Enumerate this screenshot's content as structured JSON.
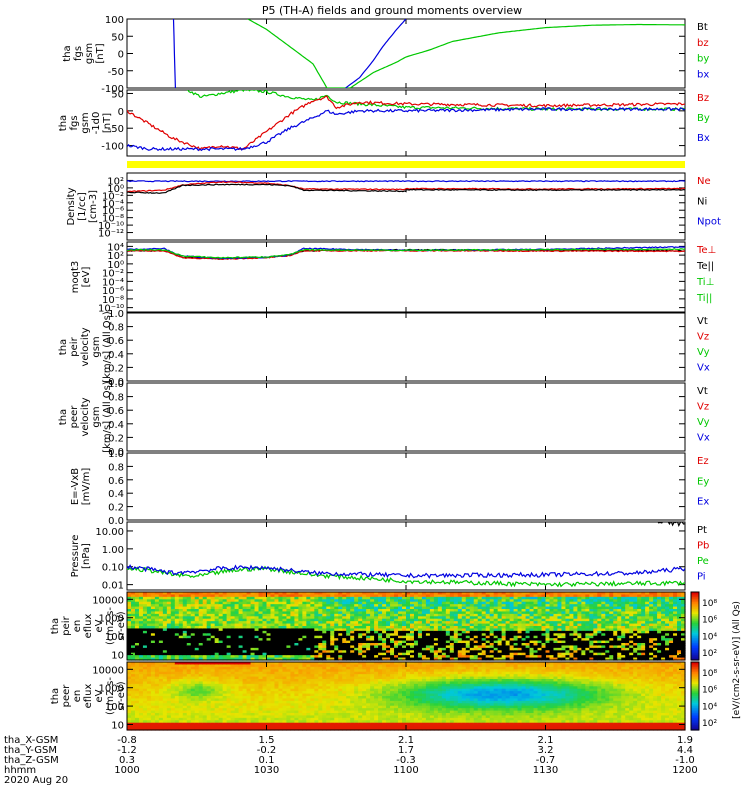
{
  "title": "P5 (TH-A) fields and ground moments overview",
  "date": "2020 Aug 20",
  "colors": {
    "black": "#000000",
    "red": "#e00000",
    "green": "#00c800",
    "blue": "#0000e0",
    "yellow": "#ffff00"
  },
  "ephemeris": {
    "rows": [
      {
        "label": "tha_X-GSM",
        "values": [
          "-0.8",
          "1.5",
          "2.1",
          "2.1",
          "1.9"
        ]
      },
      {
        "label": "tha_Y-GSM",
        "values": [
          "-1.2",
          "-0.2",
          "1.7",
          "3.2",
          "4.4"
        ]
      },
      {
        "label": "tha_Z-GSM",
        "values": [
          "0.3",
          "0.1",
          "-0.3",
          "-0.7",
          "-1.0"
        ]
      },
      {
        "label": "hhmm",
        "values": [
          "1000",
          "1030",
          "1100",
          "1130",
          "1200"
        ]
      }
    ]
  },
  "colorbar": {
    "label": "[eV/(cm2-s-sr-eV)] (All Qs)",
    "label_lower": "[eV/(cm2-s-sr-eV)]",
    "ticks_upper": [
      "10⁸",
      "10⁶",
      "10⁴",
      "10²"
    ],
    "ticks_lower": [
      "10⁸",
      "10⁶",
      "10⁴",
      "10²"
    ]
  },
  "chart_data": [
    {
      "type": "line",
      "id": "fgs",
      "ylabel": [
        "tha",
        "fgs",
        "gsm",
        "[nT]"
      ],
      "ylim": [
        -100,
        100
      ],
      "yticks": [
        "100",
        "50",
        "0",
        "-50",
        "-100"
      ],
      "legend": [
        {
          "name": "Bt",
          "color": "#000000"
        },
        {
          "name": "bz",
          "color": "#e00000"
        },
        {
          "name": "by",
          "color": "#00c800"
        },
        {
          "name": "bx",
          "color": "#0000e0"
        }
      ],
      "series": [
        {
          "name": "by",
          "color": "#00c800",
          "x": [
            1026,
            1030,
            1035,
            1040,
            1043,
            1048,
            1053,
            1058,
            1100,
            1105,
            1110,
            1120,
            1130,
            1140,
            1150,
            1200
          ],
          "y": [
            100,
            70,
            20,
            -30,
            -100,
            -100,
            -55,
            -25,
            -10,
            10,
            35,
            60,
            75,
            82,
            84,
            83
          ]
        },
        {
          "name": "bx",
          "color": "#0000e0",
          "x": [
            1010,
            1010.2,
            1010.4
          ],
          "y": [
            100,
            0,
            -100
          ]
        },
        {
          "name": "bx",
          "color": "#0000e0",
          "x": [
            1047,
            1050,
            1053,
            1055,
            1058,
            1100
          ],
          "y": [
            -100,
            -70,
            -20,
            20,
            70,
            100
          ]
        }
      ]
    },
    {
      "type": "line",
      "id": "fgs_smoothed",
      "ylabel": [
        "tha",
        "fgs",
        "gsm",
        "-1d0",
        "[nT]"
      ],
      "ylim": [
        -130,
        60
      ],
      "yticks": [
        "50",
        "0",
        "-50",
        "-100"
      ],
      "legend": [
        {
          "name": "Bz",
          "color": "#e00000"
        },
        {
          "name": "By",
          "color": "#00c800"
        },
        {
          "name": "Bx",
          "color": "#0000e0"
        }
      ],
      "series": [
        {
          "name": "By",
          "color": "#00c800",
          "x": [
            1013,
            1016,
            1020,
            1025,
            1030,
            1035,
            1040,
            1043,
            1045,
            1050,
            1100,
            1130,
            1200
          ],
          "y": [
            60,
            40,
            50,
            60,
            55,
            40,
            30,
            45,
            25,
            20,
            10,
            5,
            5
          ]
        },
        {
          "name": "Bz",
          "color": "#e00000",
          "x": [
            1000,
            1005,
            1010,
            1016,
            1020,
            1025,
            1030,
            1035,
            1040,
            1043,
            1045,
            1050,
            1100,
            1130,
            1200
          ],
          "y": [
            0,
            -40,
            -80,
            -110,
            -100,
            -110,
            -60,
            -10,
            30,
            40,
            10,
            25,
            20,
            15,
            20
          ]
        },
        {
          "name": "Bx",
          "color": "#0000e0",
          "x": [
            1000,
            1005,
            1010,
            1016,
            1020,
            1025,
            1030,
            1035,
            1040,
            1043,
            1045,
            1050,
            1100,
            1130,
            1200
          ],
          "y": [
            -100,
            -110,
            -110,
            -110,
            -110,
            -110,
            -90,
            -50,
            -20,
            0,
            -10,
            0,
            0,
            5,
            5
          ]
        }
      ]
    },
    {
      "type": "line",
      "id": "density",
      "log": true,
      "ylabel": [
        "Density",
        "[1/cc]",
        "[cm-3]"
      ],
      "ylim": [
        -14,
        4
      ],
      "yticks": [
        "10²",
        "10⁰",
        "10⁻²",
        "10⁻⁴",
        "10⁻⁶",
        "10⁻⁸",
        "10⁻¹⁰",
        "10⁻¹²"
      ],
      "ytick_values": [
        2,
        0,
        -2,
        -4,
        -6,
        -8,
        -10,
        -12
      ],
      "legend": [
        {
          "name": "Ne",
          "color": "#e00000"
        },
        {
          "name": "Ni",
          "color": "#000000"
        },
        {
          "name": "Npot",
          "color": "#0000e0"
        }
      ],
      "series": [
        {
          "name": "Npot",
          "color": "#0000e0",
          "x": [
            1000,
            1200
          ],
          "y": [
            1.8,
            1.8
          ]
        },
        {
          "name": "Ne",
          "color": "#e00000",
          "x": [
            1000,
            1008,
            1012,
            1020,
            1030,
            1035,
            1038,
            1060,
            1100,
            1130,
            1200
          ],
          "y": [
            -1,
            -0.6,
            0.8,
            1.6,
            1.3,
            0.6,
            -0.3,
            -0.4,
            -0.2,
            -0.3,
            -0.2
          ]
        },
        {
          "name": "Ni",
          "color": "#000000",
          "x": [
            1000,
            1008,
            1012,
            1020,
            1030,
            1035,
            1038,
            1060,
            1100,
            1130,
            1200
          ],
          "y": [
            -1.2,
            -1.4,
            0.7,
            0.9,
            0.9,
            0.6,
            -0.6,
            -0.9,
            -0.5,
            -0.6,
            -0.5
          ]
        }
      ]
    },
    {
      "type": "line",
      "id": "temperature",
      "log": true,
      "ylabel": [
        "moqt3",
        "[eV]"
      ],
      "ylim": [
        -11,
        5
      ],
      "yticks": [
        "10⁴",
        "10²",
        "10⁰",
        "10⁻²",
        "10⁻⁴",
        "10⁻⁶",
        "10⁻⁸",
        "10⁻¹⁰"
      ],
      "ytick_values": [
        4,
        2,
        0,
        -2,
        -4,
        -6,
        -8,
        -10
      ],
      "legend": [
        {
          "name": "Te⊥",
          "color": "#e00000"
        },
        {
          "name": "Te||",
          "color": "#000000"
        },
        {
          "name": "Ti⊥",
          "color": "#00c800"
        },
        {
          "name": "Ti||",
          "color": "#00c800"
        }
      ],
      "series": [
        {
          "name": "Te||",
          "color": "#000000",
          "x": [
            1000,
            1008,
            1012,
            1020,
            1030,
            1035,
            1038,
            1100,
            1200
          ],
          "y": [
            3,
            3,
            1.5,
            1.2,
            1.5,
            2,
            3,
            3.2,
            3
          ]
        },
        {
          "name": "Te⊥",
          "color": "#e00000",
          "x": [
            1000,
            1008,
            1012,
            1020,
            1030,
            1035,
            1038,
            1100,
            1200
          ],
          "y": [
            3,
            3,
            1.4,
            1.1,
            1.4,
            1.9,
            3,
            3,
            2.9
          ]
        },
        {
          "name": "Ti⊥",
          "color": "#0000e0",
          "x": [
            1000,
            1008,
            1010,
            1012,
            1020,
            1030,
            1035,
            1038,
            1100,
            1130,
            1200
          ],
          "y": [
            3.3,
            3.5,
            2.5,
            1.8,
            1.3,
            1.5,
            2,
            3.5,
            3.1,
            3.3,
            3.9
          ]
        },
        {
          "name": "Ti||",
          "color": "#00c800",
          "x": [
            1000,
            1008,
            1012,
            1020,
            1030,
            1035,
            1038,
            1100,
            1200
          ],
          "y": [
            3.2,
            3.2,
            1.8,
            1.4,
            1.6,
            2.1,
            3.2,
            3.1,
            3.4
          ]
        }
      ]
    },
    {
      "type": "line",
      "id": "peir_velocity",
      "ylabel": [
        "tha",
        "peir",
        "velocity",
        "gsm",
        "[km/s] (All Qs)"
      ],
      "ylim": [
        0,
        1
      ],
      "yticks": [
        "1.0",
        "0.8",
        "0.6",
        "0.4",
        "0.2",
        "0.0"
      ],
      "legend": [
        {
          "name": "Vt",
          "color": "#000000"
        },
        {
          "name": "Vz",
          "color": "#e00000"
        },
        {
          "name": "Vy",
          "color": "#00c800"
        },
        {
          "name": "Vx",
          "color": "#0000e0"
        }
      ],
      "series": []
    },
    {
      "type": "line",
      "id": "peer_velocity",
      "ylabel": [
        "tha",
        "peer",
        "velocity",
        "gsm",
        "[km/s] (All Qs)"
      ],
      "ylim": [
        0,
        1
      ],
      "yticks": [
        "1.0",
        "0.8",
        "0.6",
        "0.4",
        "0.2",
        "0.0"
      ],
      "legend": [
        {
          "name": "Vt",
          "color": "#000000"
        },
        {
          "name": "Vz",
          "color": "#e00000"
        },
        {
          "name": "Vy",
          "color": "#00c800"
        },
        {
          "name": "Vx",
          "color": "#0000e0"
        }
      ],
      "series": []
    },
    {
      "type": "line",
      "id": "efield",
      "ylabel": [
        "E=-VxB",
        "[mV/m]"
      ],
      "ylim": [
        0,
        1
      ],
      "yticks": [
        "1.0",
        "0.8",
        "0.6",
        "0.4",
        "0.2",
        "0.0"
      ],
      "legend": [
        {
          "name": "Ez",
          "color": "#e00000"
        },
        {
          "name": "Ey",
          "color": "#00c800"
        },
        {
          "name": "Ex",
          "color": "#0000e0"
        }
      ],
      "series": []
    },
    {
      "type": "line",
      "id": "pressure",
      "log": true,
      "ylabel": [
        "Pressure",
        "[nPa]"
      ],
      "ylim": [
        -2.3,
        1.5
      ],
      "yticks": [
        "10.00",
        "1.00",
        "0.10",
        "0.01"
      ],
      "ytick_values": [
        1,
        0,
        -1,
        -2
      ],
      "legend": [
        {
          "name": "Pt",
          "color": "#000000"
        },
        {
          "name": "Pb",
          "color": "#e00000"
        },
        {
          "name": "Pe",
          "color": "#00c800"
        },
        {
          "name": "Pi",
          "color": "#0000e0"
        }
      ],
      "series": [
        {
          "name": "Pt",
          "color": "#000000",
          "x": [
            1154,
            1200
          ],
          "y": [
            1.5,
            1.4
          ]
        },
        {
          "name": "Pe",
          "color": "#00c800",
          "x": [
            1000,
            1005,
            1010,
            1015,
            1020,
            1025,
            1030,
            1040,
            1100,
            1130,
            1200
          ],
          "y": [
            -1.1,
            -1.2,
            -1.45,
            -1.55,
            -1.3,
            -1.15,
            -1.1,
            -1.45,
            -1.8,
            -2.0,
            -1.9
          ]
        },
        {
          "name": "Pi",
          "color": "#0000e0",
          "x": [
            1000,
            1005,
            1010,
            1015,
            1020,
            1025,
            1030,
            1040,
            1100,
            1130,
            1150,
            1200
          ],
          "y": [
            -1.0,
            -1.15,
            -1.35,
            -1.25,
            -1.1,
            -1.05,
            -1.05,
            -1.35,
            -1.5,
            -1.45,
            -1.35,
            -1.1
          ]
        }
      ]
    },
    {
      "type": "heatmap",
      "id": "peir_eflux",
      "ylabel": [
        "tha",
        "peir",
        "en",
        "eflux",
        "eV",
        "(cm2-s-",
        "sr-eV)"
      ],
      "ylim": [
        5,
        25000
      ],
      "yticks": [
        "10000",
        "1000",
        "100",
        "10"
      ],
      "ytick_values": [
        10000,
        1000,
        100,
        10
      ]
    },
    {
      "type": "heatmap",
      "id": "peer_eflux",
      "ylabel": [
        "tha",
        "peer",
        "en",
        "eflux",
        "eV",
        "(cm2-s-",
        "sr-eV)"
      ],
      "ylim": [
        5,
        25000
      ],
      "yticks": [
        "10000",
        "1000",
        "100",
        "10"
      ],
      "ytick_values": [
        10000,
        1000,
        100,
        10
      ]
    }
  ]
}
